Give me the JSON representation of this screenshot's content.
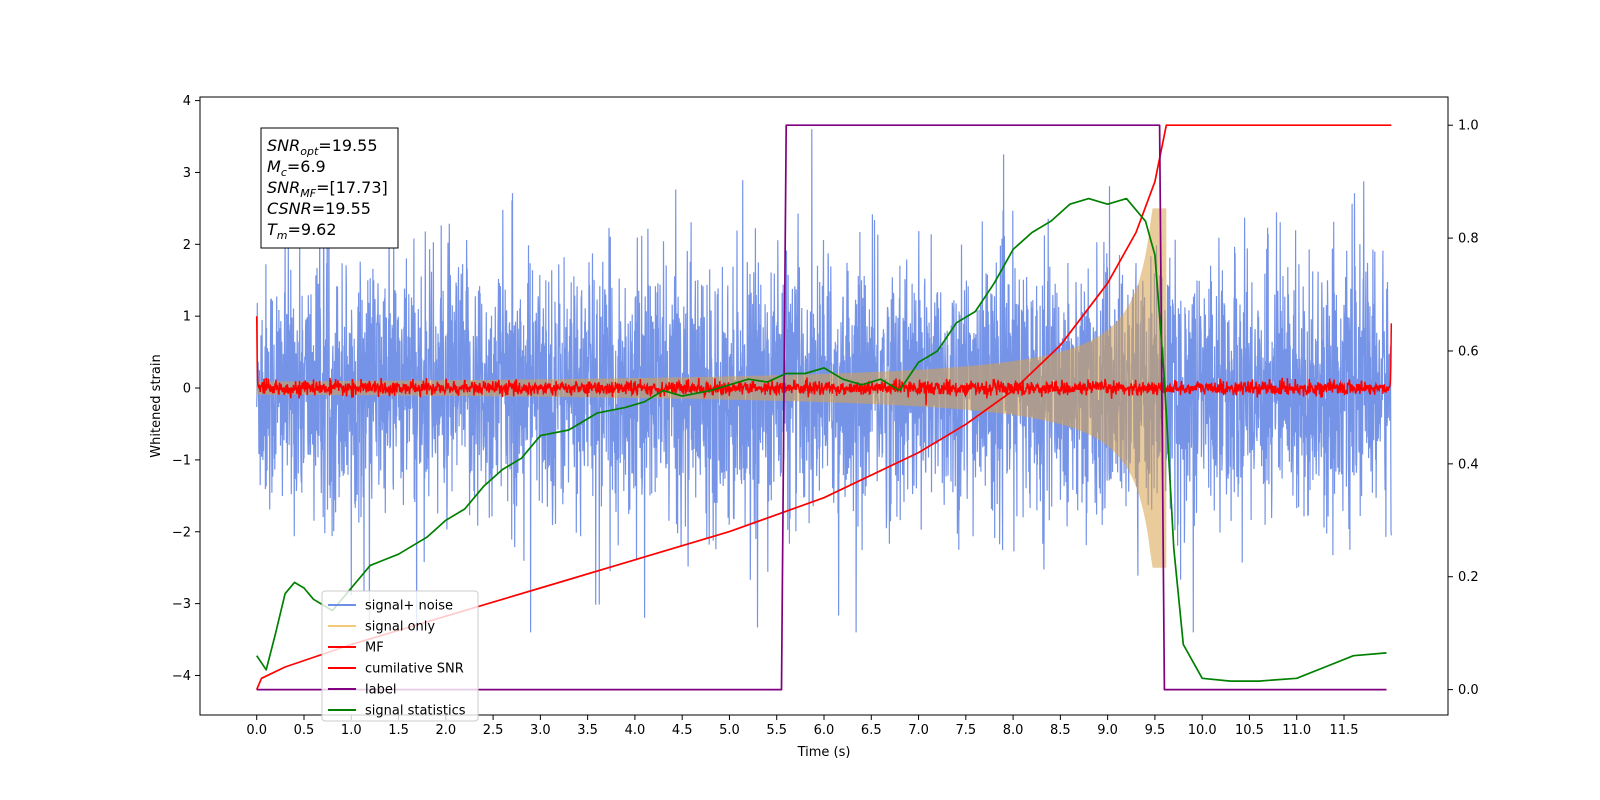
{
  "chart_data": {
    "type": "line",
    "title": "",
    "xlabel": "Time (s)",
    "ylabel": "Whitened strain",
    "ylabel_right": "",
    "xlim": [
      -0.6,
      12.6
    ],
    "ylim": [
      -4.55,
      4.05
    ],
    "ylim_right": [
      -0.045,
      1.05
    ],
    "x_ticks": [
      "0.0",
      "0.5",
      "1.0",
      "1.5",
      "2.0",
      "2.5",
      "3.0",
      "3.5",
      "4.0",
      "4.5",
      "5.0",
      "5.5",
      "6.0",
      "6.5",
      "7.0",
      "7.5",
      "8.0",
      "8.5",
      "9.0",
      "9.5",
      "10.0",
      "10.5",
      "11.0",
      "11.5"
    ],
    "y_ticks": [
      "4",
      "3",
      "2",
      "1",
      "0",
      "−1",
      "−2",
      "−3",
      "−4"
    ],
    "y_ticks_right": [
      "1.0",
      "0.8",
      "0.6",
      "0.4",
      "0.2",
      "0.0"
    ],
    "legend_position": "lower-left",
    "grid": false,
    "info_box": {
      "lines": [
        {
          "base": "SNR",
          "sub": "opt",
          "value": "=19.55"
        },
        {
          "base": "M",
          "sub": "c",
          "value": "=6.9"
        },
        {
          "base": "SNR",
          "sub": "MF",
          "value": "=[17.73]"
        },
        {
          "base": "CSNR",
          "sub": "",
          "value": "=19.55"
        },
        {
          "base": "T",
          "sub": "m",
          "value": "=9.62"
        }
      ]
    },
    "series": [
      {
        "name": "signal+ noise",
        "color": "#6f8ee6",
        "axis": "left",
        "kind": "noise",
        "x_range": [
          0,
          12.0
        ],
        "amplitude_typical": 1.0,
        "amplitude_peak": 3.6
      },
      {
        "name": "signal only",
        "color": "#f5c97a",
        "axis": "left",
        "kind": "chirp",
        "x_range": [
          0,
          9.62
        ],
        "amplitude_at_end": 2.5
      },
      {
        "name": "MF",
        "color": "#ff0000",
        "axis": "left",
        "kind": "filter-output",
        "x_range": [
          0,
          12.0
        ],
        "edge_values": [
          1.0,
          0.9
        ],
        "noise_level": 0.05
      },
      {
        "name": "cumilative SNR",
        "color": "#ff0000",
        "axis": "right",
        "x": [
          0.0,
          0.05,
          0.3,
          1.0,
          2.0,
          3.0,
          4.0,
          5.0,
          6.0,
          7.0,
          7.5,
          8.0,
          8.5,
          9.0,
          9.3,
          9.5,
          9.62,
          9.65,
          12.0
        ],
        "y": [
          0.0,
          0.02,
          0.04,
          0.08,
          0.13,
          0.18,
          0.23,
          0.28,
          0.34,
          0.42,
          0.47,
          0.53,
          0.61,
          0.72,
          0.81,
          0.9,
          1.0,
          1.0,
          1.0
        ]
      },
      {
        "name": "label",
        "color": "#800080",
        "axis": "right",
        "x": [
          0.0,
          5.55,
          5.6,
          9.55,
          9.6,
          11.95
        ],
        "y": [
          0.0,
          0.0,
          1.0,
          1.0,
          0.0,
          0.0
        ]
      },
      {
        "name": "signal statistics",
        "color": "#008000",
        "axis": "right",
        "x": [
          0.0,
          0.1,
          0.2,
          0.3,
          0.4,
          0.5,
          0.6,
          0.8,
          1.0,
          1.2,
          1.5,
          1.8,
          2.0,
          2.2,
          2.4,
          2.6,
          2.8,
          3.0,
          3.3,
          3.6,
          3.9,
          4.1,
          4.3,
          4.5,
          4.8,
          5.0,
          5.2,
          5.4,
          5.6,
          5.8,
          6.0,
          6.2,
          6.4,
          6.6,
          6.8,
          7.0,
          7.2,
          7.4,
          7.6,
          7.8,
          8.0,
          8.2,
          8.4,
          8.6,
          8.8,
          9.0,
          9.2,
          9.4,
          9.5,
          9.6,
          9.7,
          9.8,
          10.0,
          10.3,
          10.6,
          11.0,
          11.3,
          11.6,
          11.95
        ],
        "y": [
          0.06,
          0.035,
          0.1,
          0.17,
          0.19,
          0.18,
          0.16,
          0.14,
          0.18,
          0.22,
          0.24,
          0.27,
          0.3,
          0.32,
          0.36,
          0.39,
          0.41,
          0.45,
          0.46,
          0.49,
          0.5,
          0.51,
          0.53,
          0.52,
          0.53,
          0.54,
          0.55,
          0.545,
          0.56,
          0.56,
          0.57,
          0.55,
          0.54,
          0.55,
          0.53,
          0.58,
          0.6,
          0.65,
          0.67,
          0.72,
          0.78,
          0.81,
          0.83,
          0.86,
          0.87,
          0.86,
          0.87,
          0.83,
          0.77,
          0.55,
          0.25,
          0.08,
          0.02,
          0.015,
          0.015,
          0.02,
          0.04,
          0.06,
          0.065
        ]
      }
    ]
  }
}
